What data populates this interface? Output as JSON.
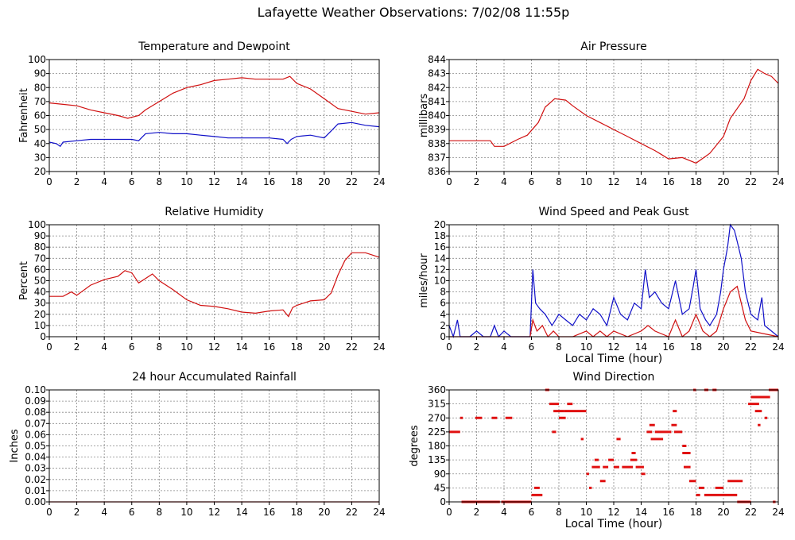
{
  "page": {
    "title": "Lafayette Weather Observations: 7/02/08 11:55p"
  },
  "chart_data": [
    {
      "id": "temp",
      "type": "line",
      "title": "Temperature and Dewpoint",
      "xlabel": "",
      "ylabel": "Fahrenheit",
      "xlim": [
        0,
        24
      ],
      "ylim": [
        20,
        100
      ],
      "xticks": [
        0,
        2,
        4,
        6,
        8,
        10,
        12,
        14,
        16,
        18,
        20,
        22,
        24
      ],
      "yticks": [
        20,
        30,
        40,
        50,
        60,
        70,
        80,
        90,
        100
      ],
      "grid": true,
      "series": [
        {
          "color": "#d01010",
          "x": [
            0,
            1,
            2,
            3,
            4,
            5,
            5.7,
            6.5,
            7,
            8,
            9,
            10,
            10.5,
            11,
            12,
            13,
            14,
            15,
            16,
            17,
            17.5,
            18,
            19,
            20,
            21,
            22,
            23,
            24
          ],
          "y": [
            69,
            68,
            67,
            64,
            62,
            60,
            58,
            60,
            64,
            70,
            76,
            80,
            81,
            82,
            85,
            86,
            87,
            86,
            86,
            86,
            88,
            83,
            79,
            72,
            65,
            63,
            61,
            62
          ]
        },
        {
          "color": "#1010c8",
          "x": [
            0,
            0.5,
            0.8,
            1,
            2,
            3,
            4,
            5,
            6,
            6.5,
            7,
            8,
            9,
            10,
            11,
            12,
            13,
            14,
            15,
            16,
            17,
            17.3,
            17.6,
            18,
            19,
            20,
            20.5,
            21,
            22,
            23,
            24
          ],
          "y": [
            41,
            40,
            38,
            41,
            42,
            43,
            43,
            43,
            43,
            42,
            47,
            48,
            47,
            47,
            46,
            45,
            44,
            44,
            44,
            44,
            43,
            40,
            43,
            45,
            46,
            44,
            49,
            54,
            55,
            53,
            52
          ]
        }
      ]
    },
    {
      "id": "press",
      "type": "line",
      "title": "Air Pressure",
      "xlabel": "",
      "ylabel": "millibars",
      "xlim": [
        0,
        24
      ],
      "ylim": [
        836,
        844
      ],
      "xticks": [
        0,
        2,
        4,
        6,
        8,
        10,
        12,
        14,
        16,
        18,
        20,
        22,
        24
      ],
      "yticks": [
        836,
        837,
        838,
        839,
        840,
        841,
        842,
        843,
        844
      ],
      "grid": true,
      "series": [
        {
          "color": "#d01010",
          "x": [
            0,
            1,
            2,
            3,
            3.3,
            4,
            5,
            5.7,
            6.5,
            7,
            7.7,
            8.5,
            9,
            10,
            11,
            12,
            13,
            14,
            15,
            15.5,
            16,
            17,
            18,
            19,
            20,
            20.5,
            21,
            21.5,
            22,
            22.5,
            23,
            23.5,
            24
          ],
          "y": [
            838.2,
            838.2,
            838.2,
            838.2,
            837.8,
            837.8,
            838.3,
            838.6,
            839.5,
            840.6,
            841.2,
            841.1,
            840.7,
            840.0,
            839.5,
            839.0,
            838.5,
            838.0,
            837.5,
            837.2,
            836.9,
            837.0,
            836.6,
            837.3,
            838.5,
            839.8,
            840.5,
            841.2,
            842.5,
            843.3,
            843.0,
            842.8,
            842.3
          ]
        }
      ]
    },
    {
      "id": "rh",
      "type": "line",
      "title": "Relative Humidity",
      "xlabel": "",
      "ylabel": "Percent",
      "xlim": [
        0,
        24
      ],
      "ylim": [
        0,
        100
      ],
      "xticks": [
        0,
        2,
        4,
        6,
        8,
        10,
        12,
        14,
        16,
        18,
        20,
        22,
        24
      ],
      "yticks": [
        0,
        10,
        20,
        30,
        40,
        50,
        60,
        70,
        80,
        90,
        100
      ],
      "grid": true,
      "series": [
        {
          "color": "#d01010",
          "x": [
            0,
            1,
            1.6,
            2,
            3,
            4,
            5,
            5.5,
            6,
            6.5,
            7,
            7.5,
            8,
            9,
            10,
            11,
            12,
            13,
            14,
            15,
            16,
            17,
            17.4,
            17.7,
            18,
            19,
            20,
            20.5,
            21,
            21.5,
            22,
            23,
            24
          ],
          "y": [
            36,
            36,
            40,
            37,
            46,
            51,
            54,
            59,
            57,
            48,
            52,
            56,
            50,
            42,
            33,
            28,
            27,
            25,
            22,
            21,
            23,
            24,
            18,
            26,
            28,
            32,
            33,
            39,
            55,
            68,
            75,
            75,
            71
          ]
        }
      ]
    },
    {
      "id": "wind",
      "type": "line",
      "title": "Wind Speed and Peak Gust",
      "xlabel": "Local Time (hour)",
      "ylabel": "miles/hour",
      "xlim": [
        0,
        24
      ],
      "ylim": [
        0,
        20
      ],
      "xticks": [
        0,
        2,
        4,
        6,
        8,
        10,
        12,
        14,
        16,
        18,
        20,
        22,
        24
      ],
      "yticks": [
        0,
        2,
        4,
        6,
        8,
        10,
        12,
        14,
        16,
        18,
        20
      ],
      "grid": true,
      "series": [
        {
          "color": "#1010c8",
          "x": [
            0,
            0.3,
            0.6,
            0.8,
            1,
            1.5,
            2,
            2.5,
            3,
            3.3,
            3.6,
            4,
            4.5,
            5,
            5.5,
            5.9,
            6.1,
            6.3,
            6.6,
            7,
            7.5,
            8,
            8.5,
            9,
            9.5,
            10,
            10.5,
            11,
            11.5,
            12,
            12.5,
            13,
            13.5,
            14,
            14.3,
            14.6,
            15,
            15.5,
            16,
            16.5,
            17,
            17.5,
            17.8,
            18,
            18.3,
            18.7,
            19,
            19.5,
            19.8,
            20,
            20.3,
            20.5,
            20.8,
            21,
            21.3,
            21.6,
            22,
            22.5,
            22.8,
            23,
            23.5,
            24
          ],
          "y": [
            2,
            0,
            3,
            0,
            0,
            0,
            1,
            0,
            0,
            2,
            0,
            1,
            0,
            0,
            0,
            0,
            12,
            6,
            5,
            4,
            2,
            4,
            3,
            2,
            4,
            3,
            5,
            4,
            2,
            7,
            4,
            3,
            6,
            5,
            12,
            7,
            8,
            6,
            5,
            10,
            4,
            5,
            9,
            12,
            5,
            3,
            2,
            4,
            8,
            12,
            16,
            20,
            19,
            17,
            14,
            8,
            4,
            3,
            7,
            2,
            1,
            0
          ]
        },
        {
          "color": "#d01010",
          "x": [
            0,
            5.9,
            6.1,
            6.4,
            6.8,
            7.2,
            7.6,
            8,
            9,
            10,
            10.5,
            11,
            11.5,
            12,
            13,
            14,
            14.5,
            15,
            16,
            16.5,
            17,
            17.5,
            18,
            18.5,
            19,
            19.5,
            20,
            20.5,
            21,
            21.3,
            21.6,
            22,
            24
          ],
          "y": [
            0,
            0,
            3,
            1,
            2,
            0,
            1,
            0,
            0,
            1,
            0,
            1,
            0,
            1,
            0,
            1,
            2,
            1,
            0,
            3,
            0,
            1,
            4,
            1,
            0,
            1,
            5,
            8,
            9,
            6,
            3,
            1,
            0
          ]
        }
      ]
    },
    {
      "id": "rain",
      "type": "line",
      "title": "24 hour Accumulated Rainfall",
      "xlabel": "",
      "ylabel": "Inches",
      "xlim": [
        0,
        24
      ],
      "ylim": [
        0,
        0.1
      ],
      "xticks": [
        0,
        2,
        4,
        6,
        8,
        10,
        12,
        14,
        16,
        18,
        20,
        22,
        24
      ],
      "yticks": [
        "0.00",
        "0.01",
        "0.02",
        "0.03",
        "0.04",
        "0.05",
        "0.06",
        "0.07",
        "0.08",
        "0.09",
        "0.10"
      ],
      "grid": true,
      "series": [
        {
          "color": "#d01010",
          "x": [
            0,
            24
          ],
          "y": [
            0,
            0
          ]
        }
      ]
    },
    {
      "id": "dir",
      "type": "scatter",
      "title": "Wind Direction",
      "xlabel": "Local Time (hour)",
      "ylabel": "degrees",
      "xlim": [
        0,
        24
      ],
      "ylim": [
        0,
        360
      ],
      "xticks": [
        0,
        2,
        4,
        6,
        8,
        10,
        12,
        14,
        16,
        18,
        20,
        22,
        24
      ],
      "yticks": [
        0,
        45,
        90,
        135,
        180,
        225,
        270,
        315,
        360
      ],
      "grid": true,
      "series": [
        {
          "color": "#e01010",
          "segments": [
            [
              0.0,
              0.8,
              225
            ],
            [
              0.8,
              1.0,
              270
            ],
            [
              0.9,
              3.7,
              0
            ],
            [
              1.9,
              2.4,
              270
            ],
            [
              3.1,
              3.5,
              270
            ],
            [
              4.1,
              4.6,
              270
            ],
            [
              3.8,
              6.0,
              0
            ],
            [
              6.0,
              6.8,
              22
            ],
            [
              6.2,
              6.6,
              45
            ],
            [
              7.0,
              7.3,
              360
            ],
            [
              7.3,
              8.0,
              315
            ],
            [
              7.5,
              7.8,
              225
            ],
            [
              7.6,
              8.4,
              292
            ],
            [
              8.0,
              8.5,
              270
            ],
            [
              8.4,
              10.0,
              292
            ],
            [
              8.6,
              9.0,
              315
            ],
            [
              9.6,
              9.8,
              202
            ],
            [
              10.0,
              10.2,
              90
            ],
            [
              10.2,
              10.4,
              45
            ],
            [
              10.4,
              11.0,
              112
            ],
            [
              10.6,
              10.9,
              135
            ],
            [
              11.0,
              11.4,
              67
            ],
            [
              11.2,
              11.6,
              112
            ],
            [
              11.6,
              12.0,
              135
            ],
            [
              12.0,
              12.4,
              112
            ],
            [
              12.2,
              12.5,
              202
            ],
            [
              12.6,
              13.4,
              112
            ],
            [
              13.2,
              13.7,
              135
            ],
            [
              13.3,
              13.6,
              157
            ],
            [
              13.6,
              14.2,
              112
            ],
            [
              14.0,
              14.3,
              90
            ],
            [
              14.4,
              14.8,
              225
            ],
            [
              14.7,
              15.6,
              202
            ],
            [
              14.6,
              15.0,
              247
            ],
            [
              15.0,
              16.2,
              225
            ],
            [
              16.2,
              16.6,
              247
            ],
            [
              16.3,
              16.6,
              292
            ],
            [
              16.4,
              17.0,
              225
            ],
            [
              17.0,
              17.3,
              180
            ],
            [
              17.0,
              17.6,
              157
            ],
            [
              17.1,
              17.6,
              112
            ],
            [
              17.5,
              18.0,
              67
            ],
            [
              17.8,
              18.0,
              360
            ],
            [
              18.0,
              18.3,
              22
            ],
            [
              18.2,
              18.6,
              45
            ],
            [
              18.6,
              18.9,
              360
            ],
            [
              19.2,
              19.5,
              360
            ],
            [
              18.6,
              21.0,
              22
            ],
            [
              19.4,
              20.0,
              45
            ],
            [
              20.3,
              21.4,
              67
            ],
            [
              21.0,
              22.0,
              0
            ],
            [
              21.8,
              22.6,
              315
            ],
            [
              22.0,
              23.4,
              337
            ],
            [
              22.3,
              22.8,
              292
            ],
            [
              22.5,
              22.7,
              247
            ],
            [
              23.0,
              23.2,
              270
            ],
            [
              23.3,
              24.0,
              360
            ],
            [
              23.6,
              23.8,
              0
            ]
          ]
        }
      ]
    }
  ]
}
